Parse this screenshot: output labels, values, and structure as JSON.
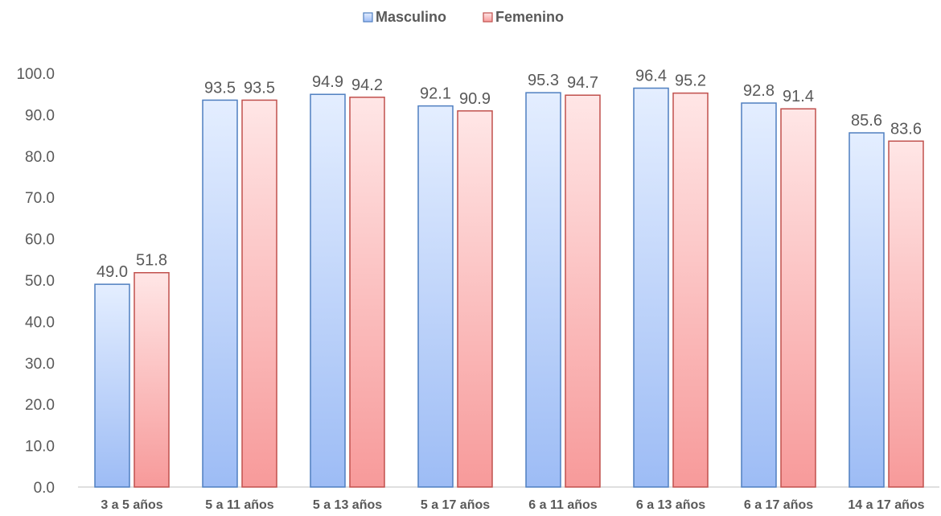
{
  "chart_data": {
    "type": "bar",
    "categories": [
      "3 a 5 años",
      "5 a 11 años",
      "5 a 13 años",
      "5 a 17 años",
      "6 a 11 años",
      "6 a 13 años",
      "6 a 17 años",
      "14 a 17 años"
    ],
    "series": [
      {
        "name": "Masculino",
        "values": [
          49.0,
          93.5,
          94.9,
          92.1,
          95.3,
          96.4,
          92.8,
          85.6
        ]
      },
      {
        "name": "Femenino",
        "values": [
          51.8,
          93.5,
          94.2,
          90.9,
          94.7,
          95.2,
          91.4,
          83.6
        ]
      }
    ],
    "yticks": [
      "0.0",
      "10.0",
      "20.0",
      "30.0",
      "40.0",
      "50.0",
      "60.0",
      "70.0",
      "80.0",
      "90.0",
      "100.0"
    ],
    "ylim": [
      0,
      100
    ],
    "grid": false,
    "legend": "top-center",
    "value_labels": true
  },
  "colors": {
    "masculino_top": "#e4eeff",
    "masculino_bottom": "#9dbcf5",
    "masculino_border": "#4f7fc0",
    "femenino_top": "#ffe6e6",
    "femenino_bottom": "#f79a9a",
    "femenino_border": "#c0504d",
    "text": "#595959",
    "axis": "#bfbfbf"
  }
}
